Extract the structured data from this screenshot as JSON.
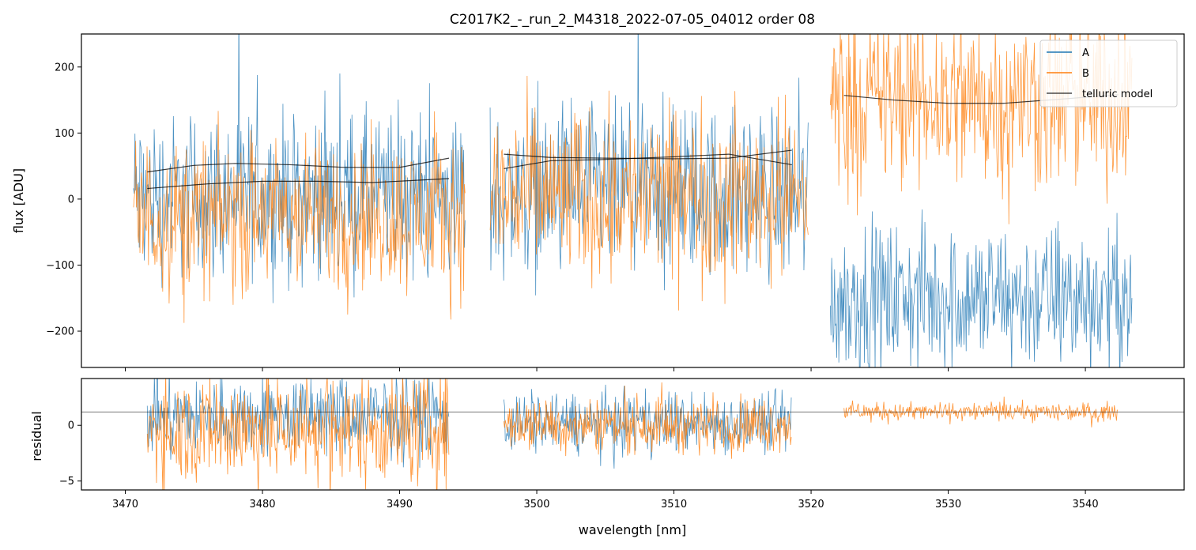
{
  "chart_data": {
    "type": "line",
    "title": "C2017K2_-_run_2_M4318_2022-07-05_04012  order 08",
    "xlabel": "wavelength [nm]",
    "xlim": [
      3466.8,
      3547.2
    ],
    "x_ticks": [
      3470,
      3480,
      3490,
      3500,
      3510,
      3520,
      3530,
      3540
    ],
    "colors": {
      "A": "#1f77b4",
      "B": "#ff7f0e",
      "telluric": "#000000"
    },
    "top_panel": {
      "ylabel": "flux [ADU]",
      "ylim": [
        -255,
        250
      ],
      "y_ticks": [
        -200,
        -100,
        0,
        100,
        200
      ],
      "legend": {
        "position": "top-right",
        "entries": [
          "A",
          "B",
          "telluric model"
        ]
      },
      "segments": [
        {
          "x_range": [
            3470.6,
            3494.8
          ],
          "A": {
            "center": 5,
            "amplitude": 90
          },
          "B": {
            "center": -25,
            "amplitude": 85
          },
          "telluric": [
            {
              "x": [
                3471.6,
                3475,
                3478,
                3482,
                3486,
                3490,
                3493.6
              ],
              "y": [
                41,
                51,
                54,
                52,
                48,
                48,
                62
              ]
            },
            {
              "x": [
                3471.6,
                3476,
                3480,
                3484,
                3488,
                3493.6
              ],
              "y": [
                16,
                23,
                27,
                27,
                25,
                31
              ]
            }
          ]
        },
        {
          "x_range": [
            3496.6,
            3519.8
          ],
          "A": {
            "center": 10,
            "amplitude": 95
          },
          "B": {
            "center": 5,
            "amplitude": 95
          },
          "telluric": [
            {
              "x": [
                3497.6,
                3501,
                3505,
                3510,
                3514,
                3518.6
              ],
              "y": [
                46,
                58,
                60,
                64,
                68,
                52
              ]
            },
            {
              "x": [
                3497.6,
                3501,
                3505,
                3510,
                3514,
                3518.6
              ],
              "y": [
                68,
                63,
                62,
                61,
                62,
                74
              ]
            }
          ]
        },
        {
          "x_range": [
            3521.4,
            3543.4
          ],
          "A": {
            "center": -150,
            "amplitude": 80
          },
          "B": {
            "center": 150,
            "amplitude": 100
          },
          "telluric": [
            {
              "x": [
                3522.4,
                3526,
                3530,
                3534,
                3538,
                3542.4
              ],
              "y": [
                157,
                150,
                145,
                145,
                151,
                158
              ]
            }
          ]
        }
      ]
    },
    "bottom_panel": {
      "ylabel": "residual",
      "ylim": [
        -5.8,
        4.2
      ],
      "y_ticks": [
        -5,
        0
      ],
      "reference_line": 1.2,
      "segments": [
        {
          "x_range": [
            3471.6,
            3493.6
          ],
          "A": {
            "center": 0.8,
            "amplitude": 2.6
          },
          "B": {
            "center": -0.3,
            "amplitude": 3.6
          }
        },
        {
          "x_range": [
            3497.6,
            3518.6
          ],
          "A": {
            "center": 0.2,
            "amplitude": 2.0
          },
          "B": {
            "center": 0.1,
            "amplitude": 1.8
          }
        },
        {
          "x_range": [
            3522.4,
            3542.4
          ],
          "B": {
            "center": 1.2,
            "amplitude": 0.6
          }
        }
      ]
    }
  }
}
